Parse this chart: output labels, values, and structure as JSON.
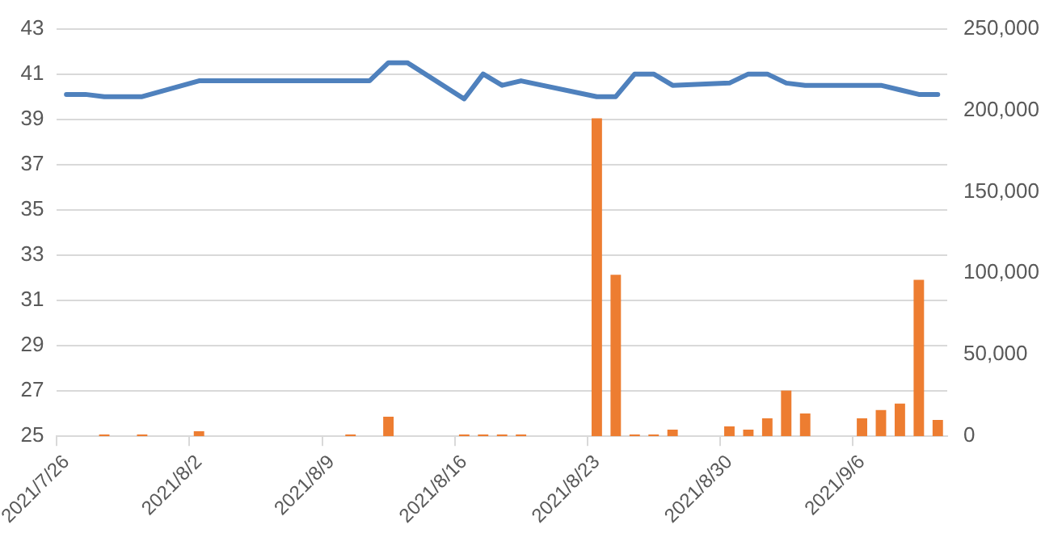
{
  "chart_data": {
    "type": "bar",
    "categories": [
      "2021/7/26",
      null,
      null,
      null,
      null,
      null,
      null,
      "2021/8/2",
      null,
      null,
      null,
      null,
      null,
      null,
      "2021/8/9",
      null,
      null,
      null,
      null,
      null,
      null,
      "2021/8/16",
      null,
      null,
      null,
      null,
      null,
      null,
      "2021/8/23",
      null,
      null,
      null,
      null,
      null,
      null,
      "2021/8/30",
      null,
      null,
      null,
      null,
      null,
      null,
      "2021/9/6",
      null,
      null,
      null,
      null
    ],
    "series": [
      {
        "type": "line",
        "color": "#4f81bd",
        "values": [
          40.1,
          40.1,
          40.0,
          40.0,
          40.0,
          null,
          null,
          40.7,
          40.7,
          40.7,
          40.7,
          40.7,
          null,
          null,
          40.7,
          40.7,
          40.7,
          41.5,
          41.5,
          null,
          null,
          39.9,
          41.0,
          40.5,
          40.7,
          null,
          null,
          null,
          40.0,
          40.0,
          41.0,
          41.0,
          40.5,
          null,
          null,
          40.6,
          41.0,
          41.0,
          40.6,
          40.5,
          null,
          null,
          40.5,
          40.5,
          40.3,
          40.1,
          40.1
        ]
      },
      {
        "axis": "y2",
        "color": "#ed7d31",
        "values": [
          null,
          null,
          1000,
          null,
          1000,
          null,
          null,
          3000,
          null,
          null,
          null,
          null,
          null,
          null,
          null,
          1000,
          null,
          12000,
          null,
          null,
          null,
          1000,
          1000,
          1000,
          1000,
          null,
          null,
          null,
          195000,
          99000,
          1000,
          1000,
          4000,
          null,
          null,
          6000,
          4000,
          11000,
          28000,
          14000,
          null,
          null,
          11000,
          16000,
          20000,
          96000,
          10000
        ]
      }
    ],
    "ylim": [
      25,
      43
    ],
    "yticks": [
      25,
      27,
      29,
      31,
      33,
      35,
      37,
      39,
      41,
      43
    ],
    "y2lim": [
      0,
      250000
    ],
    "y2ticks": [
      0,
      {
        "value": 50000,
        "label": "50,000"
      },
      {
        "value": 100000,
        "label": "100,000"
      },
      {
        "value": 150000,
        "label": "150,000"
      },
      {
        "value": 200000,
        "label": "200,000"
      },
      {
        "value": 250000,
        "label": "250,000"
      }
    ],
    "grid": "y",
    "legend": false,
    "marker": "none",
    "line_style": "solid"
  }
}
